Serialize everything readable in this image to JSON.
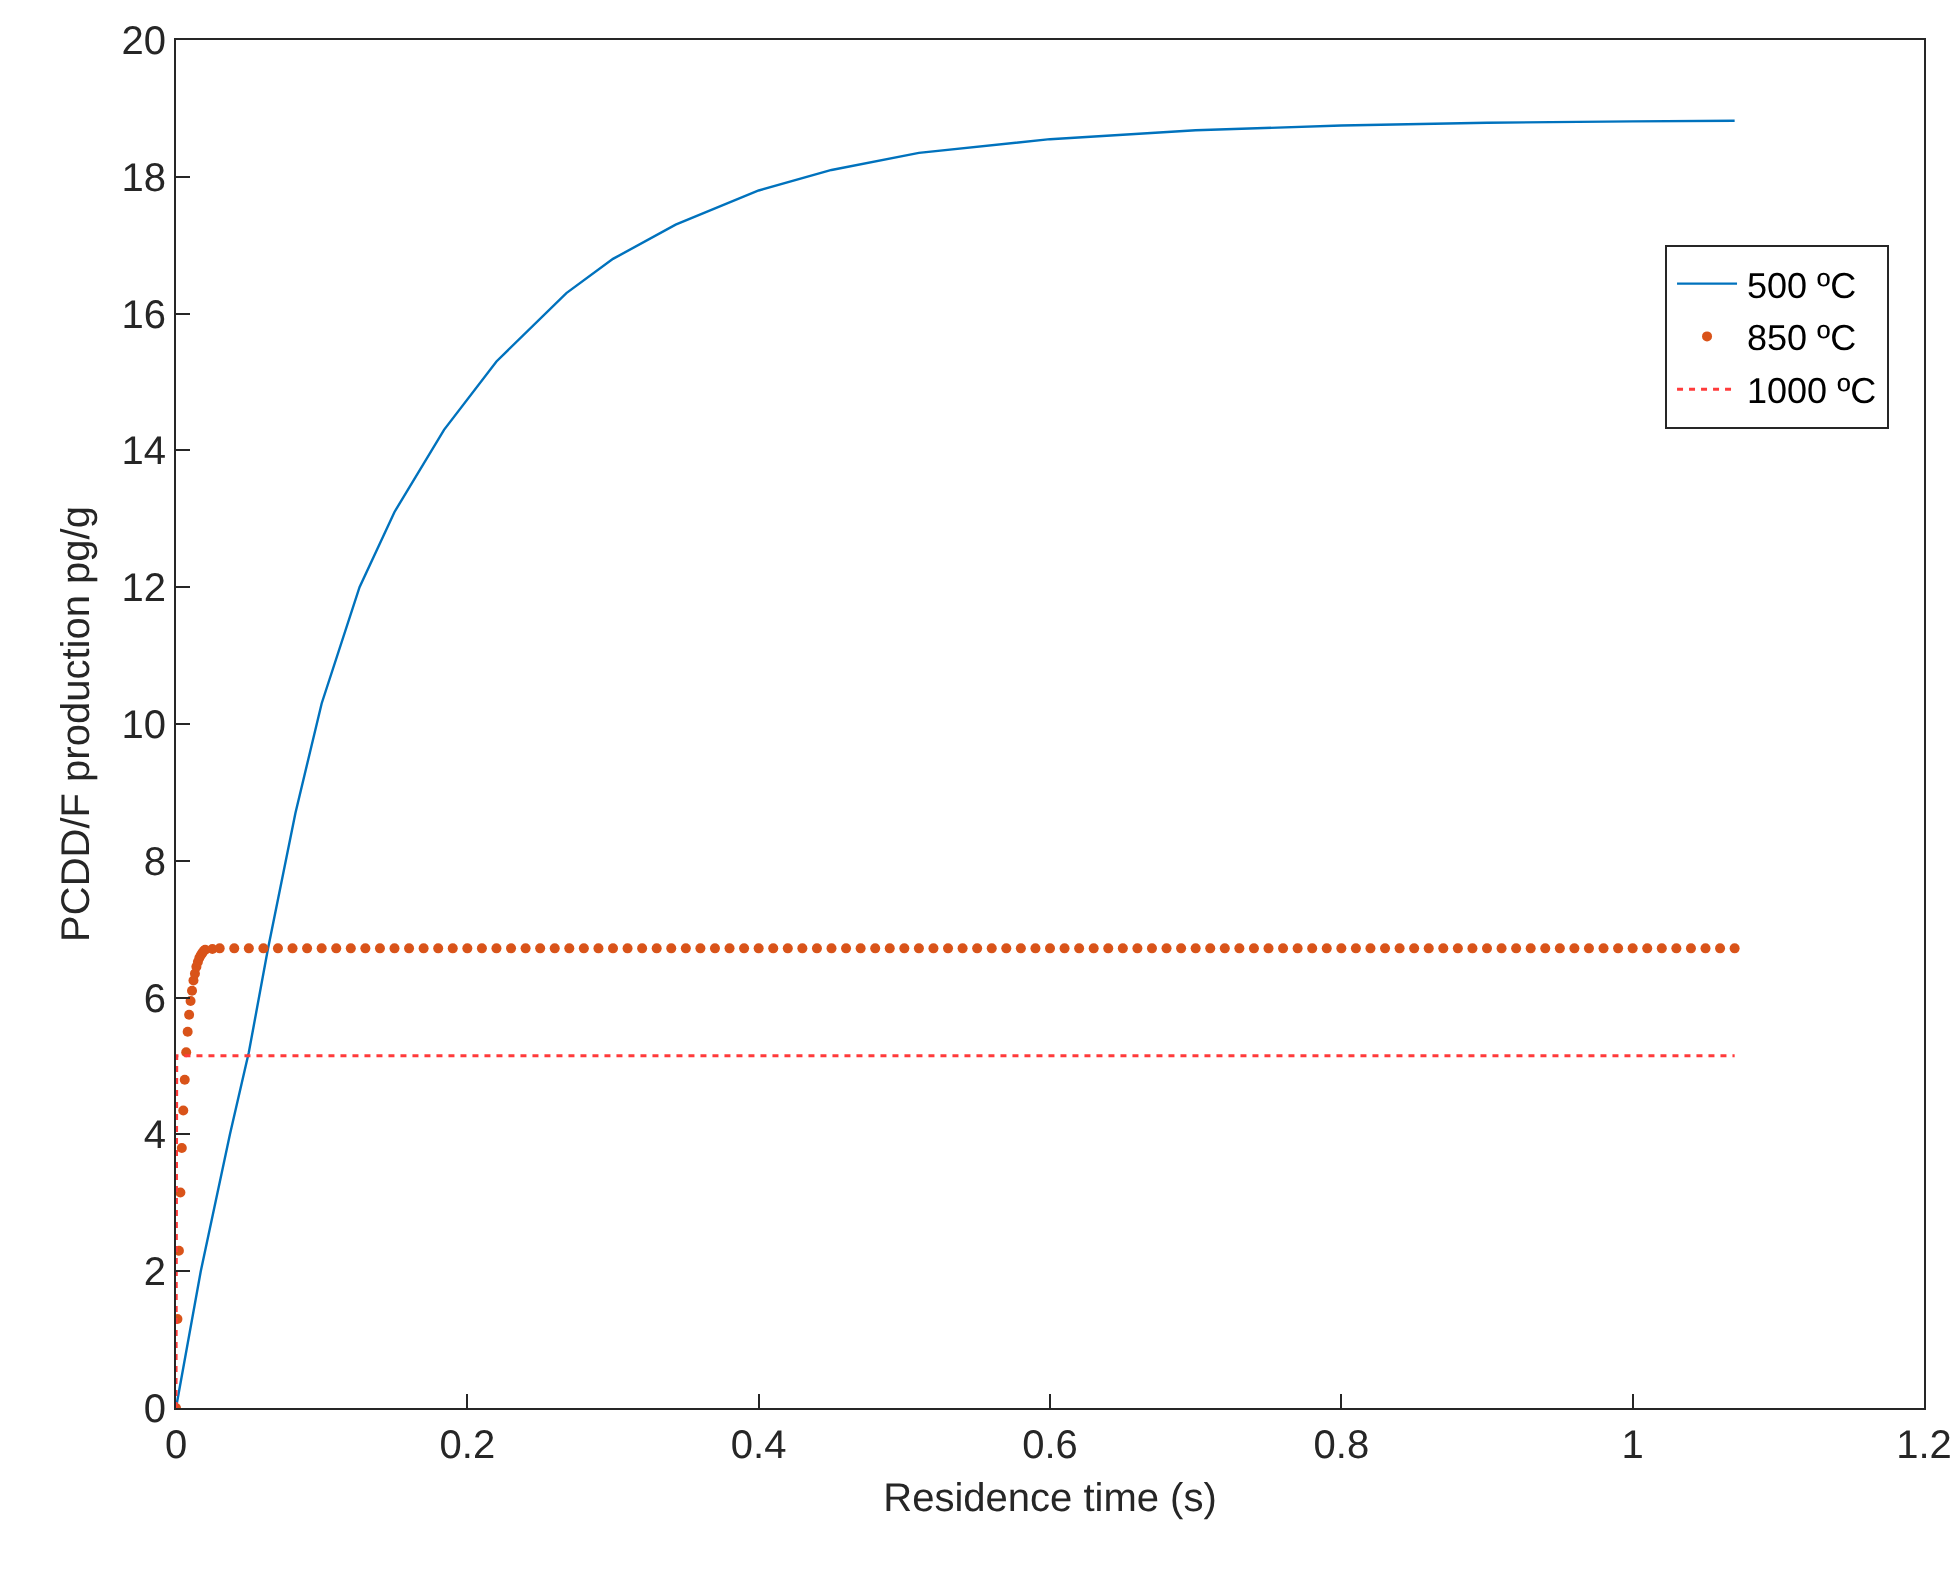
{
  "chart_data": {
    "type": "line",
    "xlabel": "Residence time (s)",
    "ylabel": "PCDD/F production pg/g",
    "xlim": [
      0,
      1.2
    ],
    "xticks": [
      0,
      0.2,
      0.4,
      0.6,
      0.8,
      1,
      1.2
    ],
    "ylim": [
      0,
      20
    ],
    "yticks": [
      0,
      2,
      4,
      6,
      8,
      10,
      12,
      14,
      16,
      18,
      20
    ],
    "grid": false,
    "legend": "top right",
    "series": [
      {
        "name": "500 ºC",
        "color": "#0072bd",
        "line_style": "solid",
        "x": [
          0,
          0.017,
          0.037,
          0.05,
          0.063,
          0.082,
          0.1,
          0.126,
          0.15,
          0.184,
          0.22,
          0.268,
          0.3,
          0.343,
          0.4,
          0.45,
          0.51,
          0.6,
          0.7,
          0.8,
          0.9,
          1,
          1.07
        ],
        "values": [
          0,
          2,
          4,
          5.2,
          6.7,
          8.7,
          10.3,
          12,
          13.1,
          14.3,
          15.3,
          16.3,
          16.8,
          17.3,
          17.8,
          18.1,
          18.35,
          18.55,
          18.68,
          18.75,
          18.79,
          18.81,
          18.82
        ]
      },
      {
        "name": "850 ºC",
        "color": "#d95319",
        "type": "scatter",
        "x": [
          0,
          0.001,
          0.002,
          0.003,
          0.004,
          0.005,
          0.006,
          0.007,
          0.008,
          0.009,
          0.01,
          0.011,
          0.012,
          0.013,
          0.014,
          0.015,
          0.016,
          0.017,
          0.018,
          0.019,
          0.02,
          0.025,
          0.03,
          0.04,
          0.05,
          0.06,
          0.07,
          0.08,
          0.09,
          0.1,
          0.11,
          0.12,
          0.13,
          0.14,
          0.15,
          0.16,
          0.17,
          0.18,
          0.19,
          0.2,
          0.21,
          0.22,
          0.23,
          0.24,
          0.25,
          0.26,
          0.27,
          0.28,
          0.29,
          0.3,
          0.31,
          0.32,
          0.33,
          0.34,
          0.35,
          0.36,
          0.37,
          0.38,
          0.39,
          0.4,
          0.41,
          0.42,
          0.43,
          0.44,
          0.45,
          0.46,
          0.47,
          0.48,
          0.49,
          0.5,
          0.51,
          0.52,
          0.53,
          0.54,
          0.55,
          0.56,
          0.57,
          0.58,
          0.59,
          0.6,
          0.61,
          0.62,
          0.63,
          0.64,
          0.65,
          0.66,
          0.67,
          0.68,
          0.69,
          0.7,
          0.71,
          0.72,
          0.73,
          0.74,
          0.75,
          0.76,
          0.77,
          0.78,
          0.79,
          0.8,
          0.81,
          0.82,
          0.83,
          0.84,
          0.85,
          0.86,
          0.87,
          0.88,
          0.89,
          0.9,
          0.91,
          0.92,
          0.93,
          0.94,
          0.95,
          0.96,
          0.97,
          0.98,
          0.99,
          1,
          1.01,
          1.02,
          1.03,
          1.04,
          1.05,
          1.06,
          1.07
        ],
        "values": [
          0,
          1.3,
          2.3,
          3.15,
          3.8,
          4.35,
          4.8,
          5.2,
          5.5,
          5.75,
          5.95,
          6.1,
          6.25,
          6.35,
          6.45,
          6.52,
          6.58,
          6.62,
          6.65,
          6.68,
          6.7,
          6.71,
          6.72,
          6.72,
          6.72,
          6.72,
          6.72,
          6.72,
          6.72,
          6.72,
          6.72,
          6.72,
          6.72,
          6.72,
          6.72,
          6.72,
          6.72,
          6.72,
          6.72,
          6.72,
          6.72,
          6.72,
          6.72,
          6.72,
          6.72,
          6.72,
          6.72,
          6.72,
          6.72,
          6.72,
          6.72,
          6.72,
          6.72,
          6.72,
          6.72,
          6.72,
          6.72,
          6.72,
          6.72,
          6.72,
          6.72,
          6.72,
          6.72,
          6.72,
          6.72,
          6.72,
          6.72,
          6.72,
          6.72,
          6.72,
          6.72,
          6.72,
          6.72,
          6.72,
          6.72,
          6.72,
          6.72,
          6.72,
          6.72,
          6.72,
          6.72,
          6.72,
          6.72,
          6.72,
          6.72,
          6.72,
          6.72,
          6.72,
          6.72,
          6.72,
          6.72,
          6.72,
          6.72,
          6.72,
          6.72,
          6.72,
          6.72,
          6.72,
          6.72,
          6.72,
          6.72,
          6.72,
          6.72,
          6.72,
          6.72,
          6.72,
          6.72,
          6.72,
          6.72,
          6.72,
          6.72,
          6.72,
          6.72,
          6.72,
          6.72,
          6.72,
          6.72,
          6.72,
          6.72,
          6.72,
          6.72,
          6.72,
          6.72,
          6.72,
          6.72,
          6.72,
          6.72
        ]
      },
      {
        "name": "1000 ºC",
        "color": "#ff3b3b",
        "type": "line",
        "line_style": "dotted",
        "x": [
          0,
          0.0005,
          1.07
        ],
        "values": [
          0,
          5.15,
          5.15
        ]
      }
    ]
  }
}
